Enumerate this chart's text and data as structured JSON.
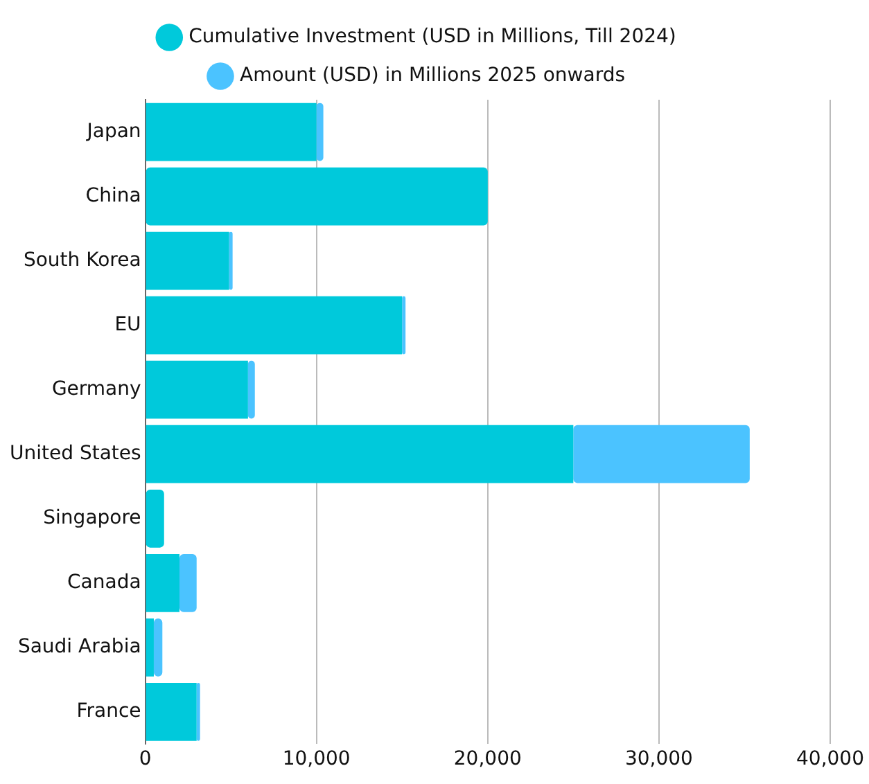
{
  "chart_data": {
    "type": "bar",
    "orientation": "horizontal",
    "stacked": true,
    "categories": [
      "Japan",
      "China",
      "South Korea",
      "EU",
      "Germany",
      "United States",
      "Singapore",
      "Canada",
      "Saudi Arabia",
      "France"
    ],
    "series": [
      {
        "name": "Cumulative Investment (USD in Millions, Till 2024)",
        "color": "#00c9db",
        "values": [
          10000,
          20000,
          4900,
          15000,
          6000,
          25000,
          1100,
          2000,
          500,
          3000
        ]
      },
      {
        "name": "Amount (USD) in Millions 2025 onwards",
        "color": "#4bc3ff",
        "values": [
          400,
          0,
          200,
          200,
          400,
          10300,
          0,
          1000,
          500,
          200
        ]
      }
    ],
    "xlim": [
      0,
      40000
    ],
    "xticks": [
      0,
      {
        "value": 10000,
        "label": "10,000"
      },
      {
        "value": 20000,
        "label": "20,000"
      },
      {
        "value": 30000,
        "label": "30,000"
      },
      {
        "value": 40000,
        "label": "40,000"
      }
    ],
    "grid": "x",
    "legend": "top"
  }
}
